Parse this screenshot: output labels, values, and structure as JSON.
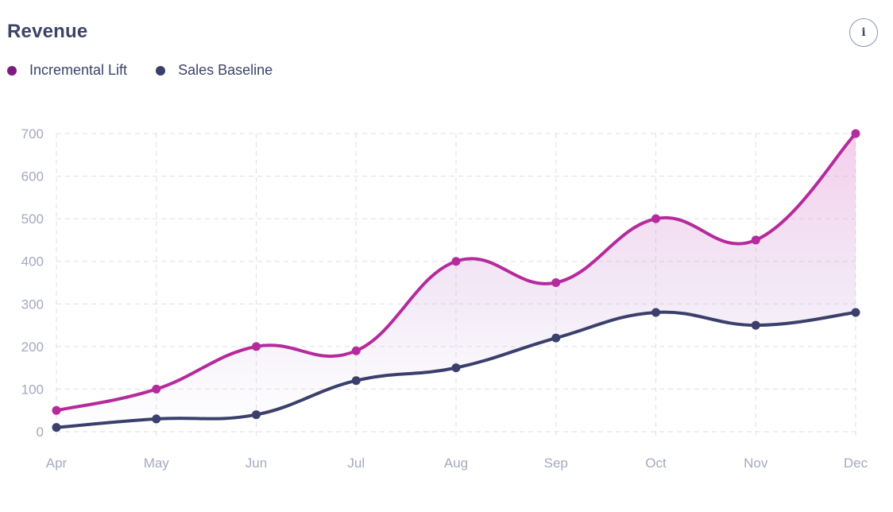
{
  "header": {
    "title": "Revenue",
    "info_icon": "info-icon",
    "info_glyph": "i"
  },
  "chart_data": {
    "type": "line",
    "title": "Revenue",
    "xlabel": "",
    "ylabel": "",
    "categories": [
      "Apr",
      "May",
      "Jun",
      "Jul",
      "Aug",
      "Sep",
      "Oct",
      "Nov",
      "Dec"
    ],
    "series": [
      {
        "name": "Incremental Lift",
        "color": "#b52a9c",
        "legend_color": "#7b1c7f",
        "values": [
          50,
          100,
          200,
          190,
          400,
          350,
          500,
          450,
          700
        ]
      },
      {
        "name": "Sales Baseline",
        "color": "#3a3f6b",
        "legend_color": "#3a3f6b",
        "values": [
          10,
          30,
          40,
          120,
          150,
          220,
          280,
          250,
          280
        ]
      }
    ],
    "ylim": [
      0,
      700
    ],
    "yticks": [
      0,
      100,
      200,
      300,
      400,
      500,
      600,
      700
    ],
    "grid": true,
    "grid_style": "dashed",
    "legend": "top-left",
    "fill_between": true
  }
}
